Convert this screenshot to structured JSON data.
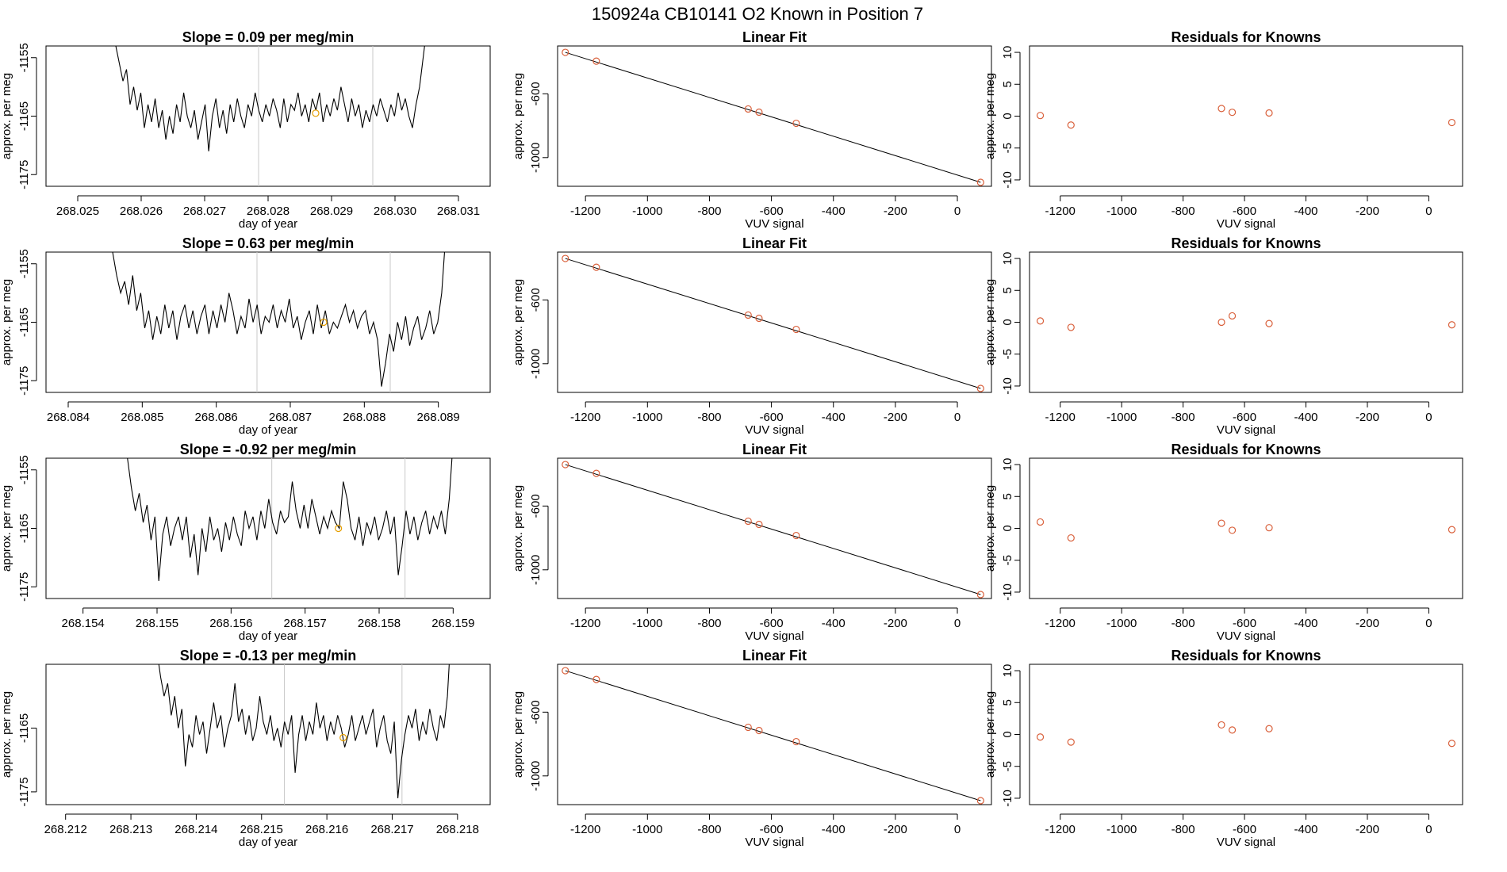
{
  "figure": {
    "title": "150924a     CB10141    O2 Known in Position  7"
  },
  "chart_data": [
    {
      "type": "line",
      "panel": "timeseries",
      "row": 1,
      "title": "Slope =  0.09  per meg/min",
      "xlabel": "day of year",
      "ylabel": "approx. per meg",
      "xlim": [
        268.0245,
        268.0315
      ],
      "ylim": [
        -1177,
        -1153
      ],
      "xticks": [
        268.025,
        268.026,
        268.027,
        268.028,
        268.029,
        268.03,
        268.031
      ],
      "yticks": [
        -1155,
        -1165,
        -1175
      ],
      "vlines": [
        268.02785,
        268.02965
      ],
      "series": [
        {
          "x_start": 268.0256,
          "x_end": 268.0305,
          "values": [
            -1153,
            -1156,
            -1159,
            -1157,
            -1163,
            -1160,
            -1164,
            -1161,
            -1167,
            -1163,
            -1166,
            -1162,
            -1167,
            -1164,
            -1169,
            -1165,
            -1168,
            -1163,
            -1166,
            -1161,
            -1165,
            -1167,
            -1164,
            -1169,
            -1166,
            -1163,
            -1171,
            -1165,
            -1162,
            -1167,
            -1164,
            -1168,
            -1163,
            -1166,
            -1162,
            -1165,
            -1167,
            -1163,
            -1165,
            -1161,
            -1164,
            -1166,
            -1163,
            -1165,
            -1162,
            -1164,
            -1167,
            -1162,
            -1166,
            -1163,
            -1164,
            -1161,
            -1165,
            -1163,
            -1166,
            -1162,
            -1164,
            -1161,
            -1166,
            -1163,
            -1165,
            -1162,
            -1164,
            -1160,
            -1163,
            -1166,
            -1162,
            -1165,
            -1163,
            -1167,
            -1164,
            -1166,
            -1163,
            -1165,
            -1162,
            -1164,
            -1166,
            -1163,
            -1165,
            -1161,
            -1164,
            -1162,
            -1165,
            -1167,
            -1163,
            -1160,
            -1155,
            -1150
          ]
        }
      ],
      "markers": [
        {
          "x": 268.02875,
          "y": -1164.5,
          "color": "#e69f00"
        }
      ]
    },
    {
      "type": "scatter",
      "panel": "linear_fit",
      "row": 1,
      "title": "Linear Fit",
      "xlabel": "VUV signal",
      "ylabel": "approx. per meg",
      "xlim": [
        -1290,
        110
      ],
      "ylim": [
        -1180,
        -300
      ],
      "xticks": [
        -1200,
        -1000,
        -800,
        -600,
        -400,
        -200,
        0
      ],
      "yticks": [
        -600,
        -1000
      ],
      "points": [
        [
          -1265,
          -340
        ],
        [
          -1165,
          -395
        ],
        [
          -675,
          -695
        ],
        [
          -640,
          -715
        ],
        [
          -520,
          -785
        ],
        [
          75,
          -1155
        ]
      ],
      "fit": [
        [
          -1265,
          -340
        ],
        [
          75,
          -1155
        ]
      ]
    },
    {
      "type": "scatter",
      "panel": "residuals",
      "row": 1,
      "title": "Residuals for Knowns",
      "xlabel": "VUV signal",
      "ylabel": "approx. per meg",
      "xlim": [
        -1300,
        110
      ],
      "ylim": [
        -11,
        11
      ],
      "xticks": [
        -1200,
        -1000,
        -800,
        -600,
        -400,
        -200,
        0
      ],
      "yticks": [
        10,
        5,
        0,
        -5,
        -10
      ],
      "points": [
        [
          -1265,
          0.1
        ],
        [
          -1165,
          -1.4
        ],
        [
          -675,
          1.2
        ],
        [
          -640,
          0.6
        ],
        [
          -520,
          0.5
        ],
        [
          75,
          -1.0
        ]
      ]
    },
    {
      "type": "line",
      "panel": "timeseries",
      "row": 2,
      "title": "Slope =  0.63  per meg/min",
      "xlabel": "day of year",
      "ylabel": "approx. per meg",
      "xlim": [
        268.0837,
        268.0897
      ],
      "ylim": [
        -1177,
        -1153
      ],
      "xticks": [
        268.084,
        268.085,
        268.086,
        268.087,
        268.088,
        268.089
      ],
      "yticks": [
        -1155,
        -1165,
        -1175
      ],
      "vlines": [
        268.08655,
        268.08835
      ],
      "series": [
        {
          "x_start": 268.0846,
          "x_end": 268.0891,
          "values": [
            -1153,
            -1157,
            -1160,
            -1158,
            -1162,
            -1157,
            -1163,
            -1160,
            -1166,
            -1163,
            -1168,
            -1164,
            -1167,
            -1162,
            -1166,
            -1163,
            -1168,
            -1164,
            -1162,
            -1166,
            -1163,
            -1167,
            -1164,
            -1162,
            -1167,
            -1163,
            -1166,
            -1162,
            -1165,
            -1160,
            -1163,
            -1167,
            -1164,
            -1166,
            -1161,
            -1165,
            -1162,
            -1167,
            -1164,
            -1165,
            -1162,
            -1166,
            -1163,
            -1165,
            -1161,
            -1166,
            -1164,
            -1168,
            -1165,
            -1163,
            -1167,
            -1162,
            -1166,
            -1163,
            -1167,
            -1165,
            -1166,
            -1164,
            -1162,
            -1165,
            -1163,
            -1166,
            -1164,
            -1163,
            -1167,
            -1165,
            -1168,
            -1176,
            -1172,
            -1167,
            -1170,
            -1165,
            -1168,
            -1164,
            -1169,
            -1166,
            -1164,
            -1168,
            -1166,
            -1163,
            -1167,
            -1165,
            -1160,
            -1150
          ]
        }
      ],
      "markers": [
        {
          "x": 268.08745,
          "y": -1165,
          "color": "#e69f00"
        }
      ]
    },
    {
      "type": "scatter",
      "panel": "linear_fit",
      "row": 2,
      "title": "Linear Fit",
      "xlabel": "VUV signal",
      "ylabel": "approx. per meg",
      "xlim": [
        -1290,
        110
      ],
      "ylim": [
        -1180,
        -300
      ],
      "xticks": [
        -1200,
        -1000,
        -800,
        -600,
        -400,
        -200,
        0
      ],
      "yticks": [
        -600,
        -1000
      ],
      "points": [
        [
          -1265,
          -340
        ],
        [
          -1165,
          -395
        ],
        [
          -675,
          -695
        ],
        [
          -640,
          -715
        ],
        [
          -520,
          -785
        ],
        [
          75,
          -1155
        ]
      ],
      "fit": [
        [
          -1265,
          -340
        ],
        [
          75,
          -1155
        ]
      ]
    },
    {
      "type": "scatter",
      "panel": "residuals",
      "row": 2,
      "title": "Residuals for Knowns",
      "xlabel": "VUV signal",
      "ylabel": "approx. per meg",
      "xlim": [
        -1300,
        110
      ],
      "ylim": [
        -11,
        11
      ],
      "xticks": [
        -1200,
        -1000,
        -800,
        -600,
        -400,
        -200,
        0
      ],
      "yticks": [
        10,
        5,
        0,
        -5,
        -10
      ],
      "points": [
        [
          -1265,
          0.2
        ],
        [
          -1165,
          -0.8
        ],
        [
          -675,
          0.0
        ],
        [
          -640,
          1.0
        ],
        [
          -520,
          -0.2
        ],
        [
          75,
          -0.4
        ]
      ]
    },
    {
      "type": "line",
      "panel": "timeseries",
      "row": 3,
      "title": "Slope =  -0.92  per meg/min",
      "xlabel": "day of year",
      "ylabel": "approx. per meg",
      "xlim": [
        268.1535,
        268.1595
      ],
      "ylim": [
        -1177,
        -1153
      ],
      "xticks": [
        268.154,
        268.155,
        268.156,
        268.157,
        268.158,
        268.159
      ],
      "yticks": [
        -1155,
        -1165,
        -1175
      ],
      "vlines": [
        268.15655,
        268.15835
      ],
      "series": [
        {
          "x_start": 268.1546,
          "x_end": 268.159,
          "values": [
            -1153,
            -1158,
            -1162,
            -1159,
            -1164,
            -1161,
            -1167,
            -1163,
            -1174,
            -1166,
            -1163,
            -1168,
            -1165,
            -1163,
            -1167,
            -1163,
            -1170,
            -1166,
            -1173,
            -1165,
            -1169,
            -1163,
            -1167,
            -1165,
            -1169,
            -1164,
            -1167,
            -1163,
            -1166,
            -1168,
            -1162,
            -1165,
            -1163,
            -1167,
            -1162,
            -1165,
            -1160,
            -1164,
            -1166,
            -1162,
            -1164,
            -1163,
            -1157,
            -1162,
            -1165,
            -1161,
            -1165,
            -1160,
            -1163,
            -1166,
            -1163,
            -1165,
            -1162,
            -1164,
            -1165,
            -1157,
            -1160,
            -1165,
            -1167,
            -1163,
            -1168,
            -1164,
            -1166,
            -1163,
            -1167,
            -1165,
            -1162,
            -1166,
            -1163,
            -1173,
            -1168,
            -1162,
            -1166,
            -1163,
            -1167,
            -1164,
            -1162,
            -1166,
            -1163,
            -1165,
            -1162,
            -1166,
            -1160,
            -1150
          ]
        }
      ],
      "markers": [
        {
          "x": 268.15745,
          "y": -1165,
          "color": "#e69f00"
        }
      ]
    },
    {
      "type": "scatter",
      "panel": "linear_fit",
      "row": 3,
      "title": "Linear Fit",
      "xlabel": "VUV signal",
      "ylabel": "approx. per meg",
      "xlim": [
        -1290,
        110
      ],
      "ylim": [
        -1180,
        -300
      ],
      "xticks": [
        -1200,
        -1000,
        -800,
        -600,
        -400,
        -200,
        0
      ],
      "yticks": [
        -600,
        -1000
      ],
      "points": [
        [
          -1265,
          -340
        ],
        [
          -1165,
          -395
        ],
        [
          -675,
          -695
        ],
        [
          -640,
          -715
        ],
        [
          -520,
          -785
        ],
        [
          75,
          -1155
        ]
      ],
      "fit": [
        [
          -1265,
          -340
        ],
        [
          75,
          -1155
        ]
      ]
    },
    {
      "type": "scatter",
      "panel": "residuals",
      "row": 3,
      "title": "Residuals for Knowns",
      "xlabel": "VUV signal",
      "ylabel": "approx. per meg",
      "xlim": [
        -1300,
        110
      ],
      "ylim": [
        -11,
        11
      ],
      "xticks": [
        -1200,
        -1000,
        -800,
        -600,
        -400,
        -200,
        0
      ],
      "yticks": [
        10,
        5,
        0,
        -5,
        -10
      ],
      "points": [
        [
          -1265,
          1.0
        ],
        [
          -1165,
          -1.5
        ],
        [
          -675,
          0.8
        ],
        [
          -640,
          -0.3
        ],
        [
          -520,
          0.1
        ],
        [
          75,
          -0.2
        ]
      ]
    },
    {
      "type": "line",
      "panel": "timeseries",
      "row": 4,
      "title": "Slope =  -0.13  per meg/min",
      "xlabel": "day of year",
      "ylabel": "approx. per meg",
      "xlim": [
        268.2117,
        268.2185
      ],
      "ylim": [
        -1177,
        -1155
      ],
      "xticks": [
        268.212,
        268.213,
        268.214,
        268.215,
        268.216,
        268.217,
        268.218
      ],
      "yticks": [
        -1165,
        -1175
      ],
      "vlines": [
        268.21535,
        268.21715
      ],
      "series": [
        {
          "x_start": 268.2134,
          "x_end": 268.2179,
          "values": [
            -1153,
            -1157,
            -1160,
            -1158,
            -1163,
            -1160,
            -1165,
            -1162,
            -1171,
            -1166,
            -1168,
            -1163,
            -1166,
            -1164,
            -1169,
            -1165,
            -1161,
            -1165,
            -1163,
            -1168,
            -1165,
            -1163,
            -1158,
            -1164,
            -1162,
            -1166,
            -1163,
            -1167,
            -1165,
            -1160,
            -1164,
            -1166,
            -1163,
            -1167,
            -1165,
            -1168,
            -1164,
            -1166,
            -1163,
            -1172,
            -1166,
            -1163,
            -1167,
            -1164,
            -1166,
            -1161,
            -1165,
            -1163,
            -1167,
            -1164,
            -1166,
            -1163,
            -1165,
            -1168,
            -1166,
            -1163,
            -1167,
            -1165,
            -1163,
            -1166,
            -1164,
            -1162,
            -1168,
            -1165,
            -1163,
            -1167,
            -1169,
            -1164,
            -1176,
            -1170,
            -1166,
            -1163,
            -1165,
            -1162,
            -1167,
            -1164,
            -1166,
            -1162,
            -1165,
            -1167,
            -1163,
            -1165,
            -1160,
            -1150
          ]
        }
      ],
      "markers": [
        {
          "x": 268.21625,
          "y": -1166.5,
          "color": "#e69f00"
        }
      ]
    },
    {
      "type": "scatter",
      "panel": "linear_fit",
      "row": 4,
      "title": "Linear Fit",
      "xlabel": "VUV signal",
      "ylabel": "approx. per meg",
      "xlim": [
        -1290,
        110
      ],
      "ylim": [
        -1180,
        -300
      ],
      "xticks": [
        -1200,
        -1000,
        -800,
        -600,
        -400,
        -200,
        0
      ],
      "yticks": [
        -600,
        -1000
      ],
      "points": [
        [
          -1265,
          -340
        ],
        [
          -1165,
          -395
        ],
        [
          -675,
          -695
        ],
        [
          -640,
          -715
        ],
        [
          -520,
          -785
        ],
        [
          75,
          -1155
        ]
      ],
      "fit": [
        [
          -1265,
          -340
        ],
        [
          75,
          -1155
        ]
      ]
    },
    {
      "type": "scatter",
      "panel": "residuals",
      "row": 4,
      "title": "Residuals for Knowns",
      "xlabel": "VUV signal",
      "ylabel": "approx. per meg",
      "xlim": [
        -1300,
        110
      ],
      "ylim": [
        -11,
        11
      ],
      "xticks": [
        -1200,
        -1000,
        -800,
        -600,
        -400,
        -200,
        0
      ],
      "yticks": [
        10,
        5,
        0,
        -5,
        -10
      ],
      "points": [
        [
          -1265,
          -0.4
        ],
        [
          -1165,
          -1.2
        ],
        [
          -675,
          1.5
        ],
        [
          -640,
          0.7
        ],
        [
          -520,
          0.9
        ],
        [
          75,
          -1.4
        ]
      ]
    }
  ]
}
